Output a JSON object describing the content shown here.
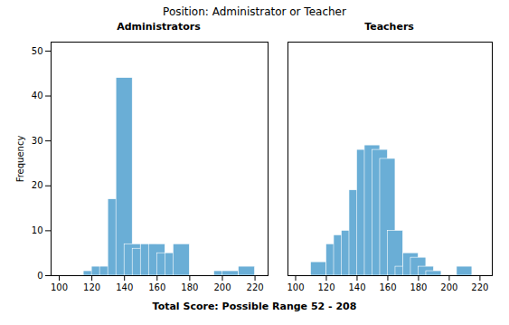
{
  "title": "Position: Administrator or Teacher",
  "xlabel": "Total Score: Possible Range 52 - 208",
  "chart_data": [
    {
      "type": "bar",
      "title": "Administrators",
      "ylabel": "Frequency",
      "color": "#6aaed6",
      "x": [
        115,
        120,
        125,
        130,
        135,
        140,
        145,
        150,
        155,
        160,
        165,
        170,
        175,
        180,
        185,
        190,
        195,
        200,
        205,
        210
      ],
      "x2": [
        125,
        130,
        135,
        140,
        145,
        150,
        155,
        160,
        165,
        170,
        175,
        180,
        185,
        190,
        195,
        200,
        205,
        210,
        215,
        220
      ],
      "values": [
        1,
        2,
        2,
        17,
        44,
        7,
        6,
        7,
        7,
        5,
        5,
        7,
        0,
        0,
        0,
        0,
        1,
        1,
        0,
        2
      ],
      "xlim": [
        95,
        228
      ],
      "xticks": [
        100,
        120,
        140,
        160,
        180,
        200,
        220
      ],
      "ylim": [
        0,
        52
      ],
      "yticks": [
        0,
        10,
        20,
        30,
        40,
        50
      ],
      "grid": false
    },
    {
      "type": "bar",
      "title": "Teachers",
      "color": "#6aaed6",
      "x": [
        110,
        115,
        120,
        125,
        130,
        135,
        140,
        145,
        150,
        155,
        160,
        165,
        170,
        175,
        180,
        185,
        190,
        195,
        200,
        205
      ],
      "x2": [
        120,
        125,
        130,
        135,
        140,
        145,
        150,
        155,
        160,
        165,
        170,
        175,
        180,
        185,
        190,
        195,
        200,
        205,
        210,
        215
      ],
      "values": [
        3,
        0,
        7,
        9,
        10,
        19,
        28,
        29,
        28,
        26,
        10,
        2,
        5,
        4,
        2,
        1,
        0,
        0,
        0,
        2
      ],
      "xlim": [
        95,
        228
      ],
      "xticks": [
        100,
        120,
        140,
        160,
        180,
        200,
        220
      ],
      "ylim": [
        0,
        52
      ],
      "grid": false,
      "tick_labels": "x"
    }
  ]
}
